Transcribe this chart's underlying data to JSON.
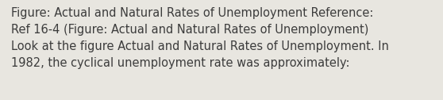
{
  "lines": [
    "Figure: Actual and Natural Rates of Unemployment Reference:",
    "Ref 16-4 (Figure: Actual and Natural Rates of Unemployment)",
    "Look at the figure Actual and Natural Rates of Unemployment. In",
    "1982, the cyclical unemployment rate was approximately:"
  ],
  "background_color": "#e8e6e0",
  "text_color": "#3c3c3c",
  "font_size": 10.5,
  "fig_width": 5.58,
  "fig_height": 1.26,
  "dpi": 100
}
